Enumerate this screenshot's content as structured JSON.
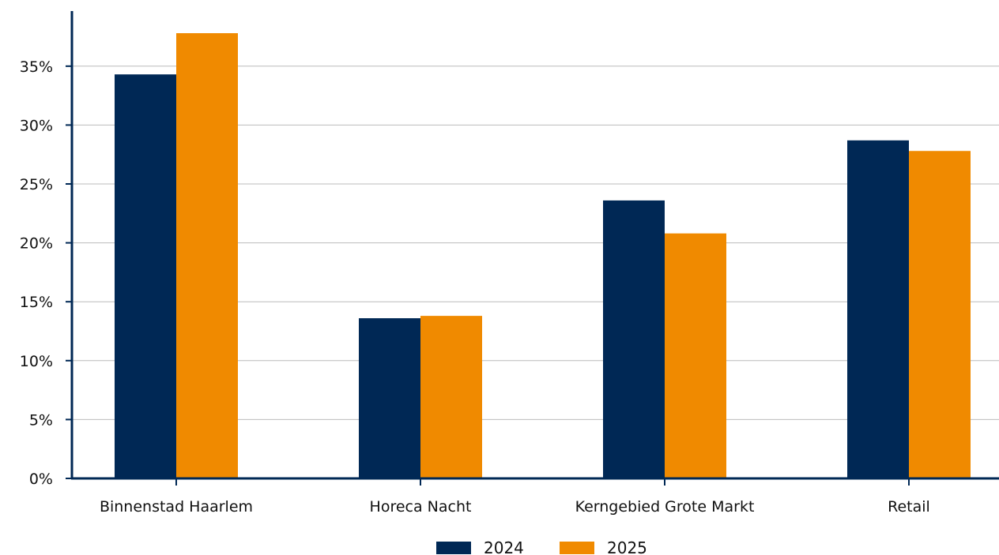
{
  "chart_data": {
    "type": "bar",
    "categories": [
      "Binnenstad Haarlem",
      "Horeca Nacht",
      "Kerngebied Grote Markt",
      "Retail"
    ],
    "series": [
      {
        "name": "2024",
        "values": [
          34.3,
          13.6,
          23.6,
          28.7
        ],
        "color": "#002855"
      },
      {
        "name": "2025",
        "values": [
          37.8,
          13.8,
          20.8,
          27.8
        ],
        "color": "#F08A00"
      }
    ],
    "ylim": [
      0,
      40
    ],
    "yticks": [
      0,
      5,
      10,
      15,
      20,
      25,
      30,
      35
    ],
    "ytick_labels": [
      "0%",
      "5%",
      "10%",
      "15%",
      "20%",
      "25%",
      "30%",
      "35%"
    ],
    "xlabel": "",
    "ylabel": "",
    "title": "",
    "grid": "horizontal",
    "legend_position": "bottom-center",
    "axis_color": "#002855",
    "grid_color": "#BBBBBB"
  }
}
